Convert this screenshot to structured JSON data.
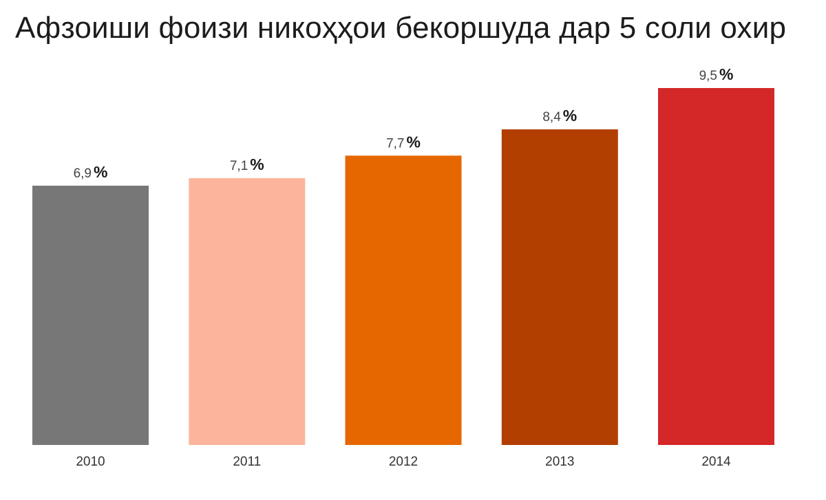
{
  "chart_data": {
    "type": "bar",
    "title": "Афзоиши фоизи никоҳҳои бекоршуда дар 5 соли охир",
    "categories": [
      "2010",
      "2011",
      "2012",
      "2013",
      "2014"
    ],
    "values": [
      6.9,
      7.1,
      7.7,
      8.4,
      9.5
    ],
    "value_labels": [
      "6,9",
      "7,1",
      "7,7",
      "8,4",
      "9,5"
    ],
    "unit": "%",
    "colors": [
      "#777777",
      "#fcb59c",
      "#e66700",
      "#b23f00",
      "#d42728"
    ],
    "xlabel": "",
    "ylabel": "",
    "ylim": [
      0,
      9.5
    ],
    "grid": false,
    "legend": "none"
  }
}
